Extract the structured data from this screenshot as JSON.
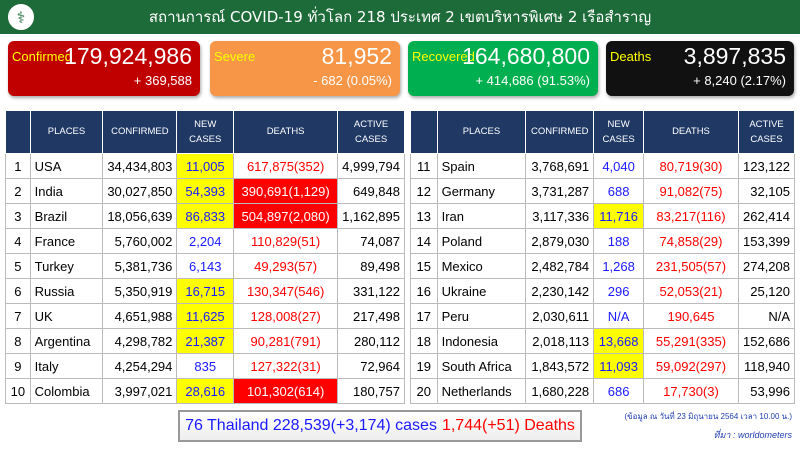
{
  "header": {
    "title": "สถานการณ์ COVID-19 ทั่วโลก 218 ประเทศ 2 เขตบริหารพิเศษ 2 เรือสำราญ"
  },
  "cards": [
    {
      "label": "Confirmed",
      "value": "179,924,986",
      "change": "+ 369,588",
      "color": "#c00000"
    },
    {
      "label": "Severe",
      "value": "81,952",
      "change": "- 682 (0.05%)",
      "color": "#f79646"
    },
    {
      "label": "Recovered",
      "value": "164,680,800",
      "change": "+ 414,686 (91.53%)",
      "color": "#00b050"
    },
    {
      "label": "Deaths",
      "value": "3,897,835",
      "change": "+ 8,240 (2.17%)",
      "color": "#111111"
    }
  ],
  "columns": [
    "PLACES",
    "CONFIRMED",
    "NEW CASES",
    "DEATHS",
    "ACTIVE CASES"
  ],
  "left": [
    [
      "1",
      "USA",
      "34,434,803",
      "11,005",
      "617,875(352)",
      "4,999,794",
      1,
      0
    ],
    [
      "2",
      "India",
      "30,027,850",
      "54,393",
      "390,691(1,129)",
      "649,848",
      1,
      1
    ],
    [
      "3",
      "Brazil",
      "18,056,639",
      "86,833",
      "504,897(2,080)",
      "1,162,895",
      1,
      1
    ],
    [
      "4",
      "France",
      "5,760,002",
      "2,204",
      "110,829(51)",
      "74,087",
      0,
      0
    ],
    [
      "5",
      "Turkey",
      "5,381,736",
      "6,143",
      "49,293(57)",
      "89,498",
      0,
      0
    ],
    [
      "6",
      "Russia",
      "5,350,919",
      "16,715",
      "130,347(546)",
      "331,122",
      1,
      0
    ],
    [
      "7",
      "UK",
      "4,651,988",
      "11,625",
      "128,008(27)",
      "217,498",
      1,
      0
    ],
    [
      "8",
      "Argentina",
      "4,298,782",
      "21,387",
      "90,281(791)",
      "280,112",
      1,
      0
    ],
    [
      "9",
      "Italy",
      "4,254,294",
      "835",
      "127,322(31)",
      "72,964",
      0,
      0
    ],
    [
      "10",
      "Colombia",
      "3,997,021",
      "28,616",
      "101,302(614)",
      "180,757",
      1,
      1
    ]
  ],
  "right": [
    [
      "11",
      "Spain",
      "3,768,691",
      "4,040",
      "80,719(30)",
      "123,122",
      0,
      0
    ],
    [
      "12",
      "Germany",
      "3,731,287",
      "688",
      "91,082(75)",
      "32,105",
      0,
      0
    ],
    [
      "13",
      "Iran",
      "3,117,336",
      "11,716",
      "83,217(116)",
      "262,414",
      1,
      0
    ],
    [
      "14",
      "Poland",
      "2,879,030",
      "188",
      "74,858(29)",
      "153,399",
      0,
      0
    ],
    [
      "15",
      "Mexico",
      "2,482,784",
      "1,268",
      "231,505(57)",
      "274,208",
      0,
      0
    ],
    [
      "16",
      "Ukraine",
      "2,230,142",
      "296",
      "52,053(21)",
      "25,120",
      0,
      0
    ],
    [
      "17",
      "Peru",
      "2,030,611",
      "N/A",
      "190,645",
      "N/A",
      0,
      0
    ],
    [
      "18",
      "Indonesia",
      "2,018,113",
      "13,668",
      "55,291(335)",
      "152,686",
      1,
      0
    ],
    [
      "19",
      "South Africa",
      "1,843,572",
      "11,093",
      "59,092(297)",
      "118,940",
      1,
      0
    ],
    [
      "20",
      "Netherlands",
      "1,680,228",
      "686",
      "17,730(3)",
      "53,996",
      0,
      0
    ]
  ],
  "thailand": {
    "cases": "76 Thailand 228,539(+3,174) cases",
    "deaths": "1,744(+51) Deaths"
  },
  "footnote": {
    "date": "(ข้อมูล ณ วันที่ 23 มิถุนายน 2564 เวลา 10.00 น.)",
    "source": "ที่มา : worldometers"
  }
}
